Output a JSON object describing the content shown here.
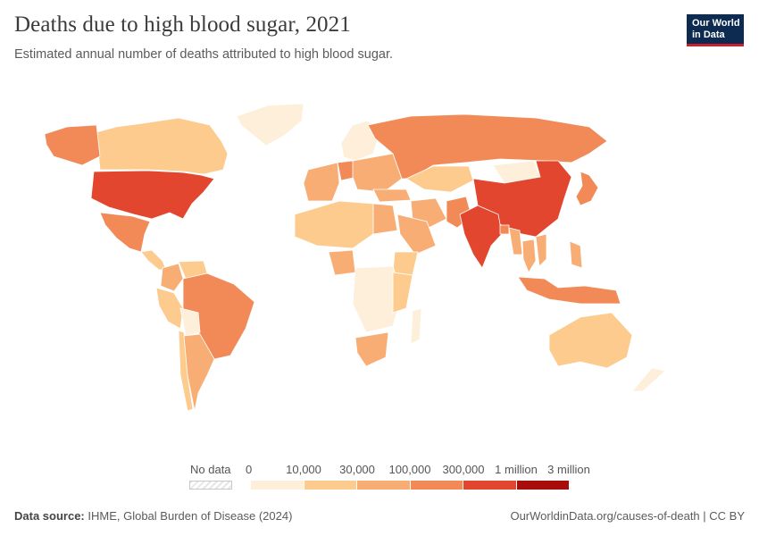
{
  "header": {
    "title": "Deaths due to high blood sugar, 2021",
    "subtitle": "Estimated annual number of deaths attributed to high blood sugar.",
    "logo_line1": "Our World",
    "logo_line2": "in Data"
  },
  "legend": {
    "no_data_label": "No data",
    "ticks": [
      "0",
      "10,000",
      "30,000",
      "100,000",
      "300,000",
      "1 million",
      "3 million"
    ],
    "colors": [
      "#fdefd9",
      "#fdcb8e",
      "#f8ad74",
      "#f28a58",
      "#e2462e",
      "#a80d0b"
    ]
  },
  "map_data": {
    "fill_levels": {
      "USA": 4,
      "Canada": 1,
      "Alaska": 3,
      "Greenland": 0,
      "Mexico": 3,
      "Central America": 1,
      "Brazil": 3,
      "Argentina": 2,
      "Colombia": 2,
      "Peru": 1,
      "Venezuela": 1,
      "Chile": 1,
      "Bolivia": 0,
      "Russia": 3,
      "China": 4,
      "India": 4,
      "Pakistan": 3,
      "Indonesia": 3,
      "Philippines": 2,
      "Japan": 3,
      "Bangladesh": 3,
      "Vietnam": 2,
      "Thailand": 2,
      "Myanmar": 2,
      "Kazakhstan": 1,
      "Mongolia": 0,
      "Turkey": 2,
      "Iran": 2,
      "Saudi Arabia": 2,
      "Western Europe": 2,
      "Germany": 3,
      "Scandinavia": 0,
      "Eastern Europe": 2,
      "Egypt": 2,
      "Nigeria": 2,
      "Ethiopia": 1,
      "South Africa": 2,
      "North Africa": 1,
      "Central Africa": 0,
      "East Africa": 1,
      "Madagascar": 0,
      "Australia": 1,
      "New Zealand": 0
    }
  },
  "footer": {
    "source_label": "Data source:",
    "source_text": "IHME, Global Burden of Disease (2024)",
    "url_text": "OurWorldinData.org/causes-of-death | CC BY"
  }
}
